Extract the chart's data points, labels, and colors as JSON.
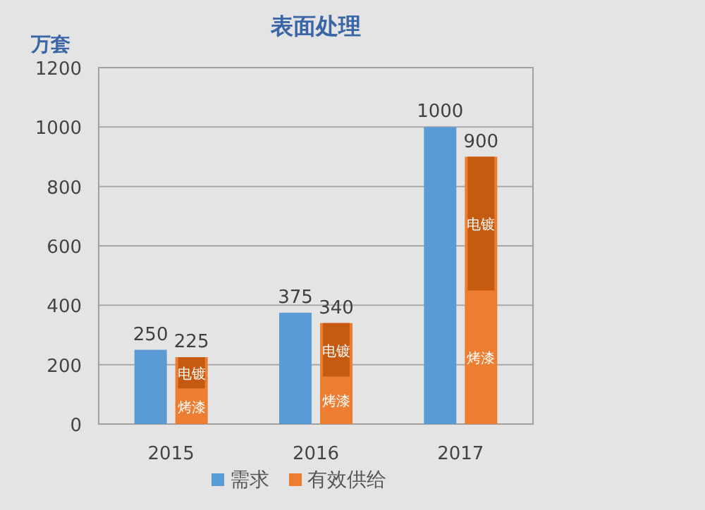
{
  "chart_data": {
    "type": "bar",
    "title": "表面处理",
    "ylabel": "万套",
    "categories": [
      "2015",
      "2016",
      "2017"
    ],
    "series": [
      {
        "name": "需求",
        "color": "#5b9bd5",
        "values": [
          250,
          375,
          1000
        ],
        "value_labels": [
          "250",
          "375",
          "1000"
        ]
      },
      {
        "name": "有效供给",
        "color": "#ed7d31",
        "values": [
          225,
          340,
          900
        ],
        "value_labels": [
          "225",
          "340",
          "900"
        ]
      },
      {
        "color": "#c55a11",
        "values": [
          105,
          180,
          450
        ],
        "base": [
          120,
          160,
          450
        ]
      }
    ],
    "annotations": [
      {
        "text": "烤漆",
        "x": "2015",
        "y": 60
      },
      {
        "text": "电镀",
        "x": "2015",
        "y": 172
      },
      {
        "text": "烤漆",
        "x": "2016",
        "y": 80
      },
      {
        "text": "电镀",
        "x": "2016",
        "y": 250
      },
      {
        "text": "烤漆",
        "x": "2017",
        "y": 225
      },
      {
        "text": "电镀",
        "x": "2017",
        "y": 675
      }
    ],
    "ylim": [
      0,
      1200
    ],
    "yticks": [
      0,
      200,
      400,
      600,
      800,
      1000,
      1200
    ],
    "grid": "y",
    "legend": "bottom"
  }
}
